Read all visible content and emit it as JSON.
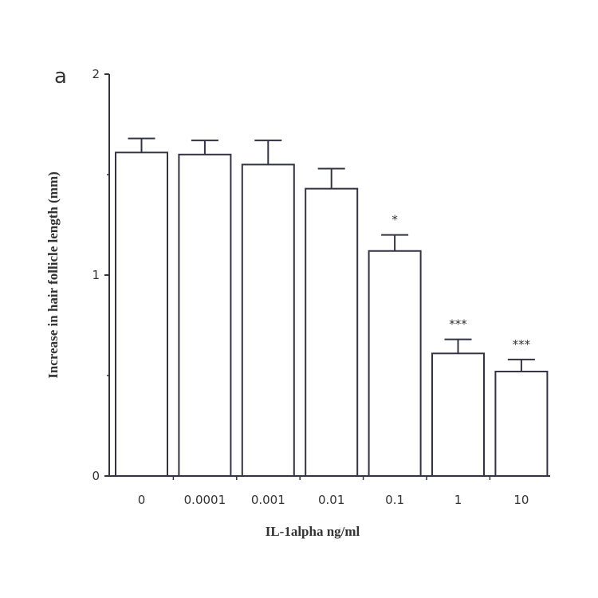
{
  "chart_data": {
    "type": "bar",
    "panel_label": "a",
    "xlabel": "IL-1alpha ng/ml",
    "ylabel": "Increase in hair follicle length (mm)",
    "categories": [
      "0",
      "0.0001",
      "0.001",
      "0.01",
      "0.1",
      "1",
      "10"
    ],
    "values": [
      1.61,
      1.6,
      1.55,
      1.43,
      1.12,
      0.61,
      0.52
    ],
    "error_upper": [
      1.68,
      1.67,
      1.67,
      1.53,
      1.2,
      0.68,
      0.58
    ],
    "annotations": [
      "",
      "",
      "",
      "",
      "*",
      "***",
      "***"
    ],
    "ylim": [
      0,
      2
    ],
    "yticks": [
      "0",
      "1",
      "2"
    ],
    "grid": false,
    "colors": {
      "bar_fill": "#ffffff",
      "stroke": "#333344"
    }
  }
}
